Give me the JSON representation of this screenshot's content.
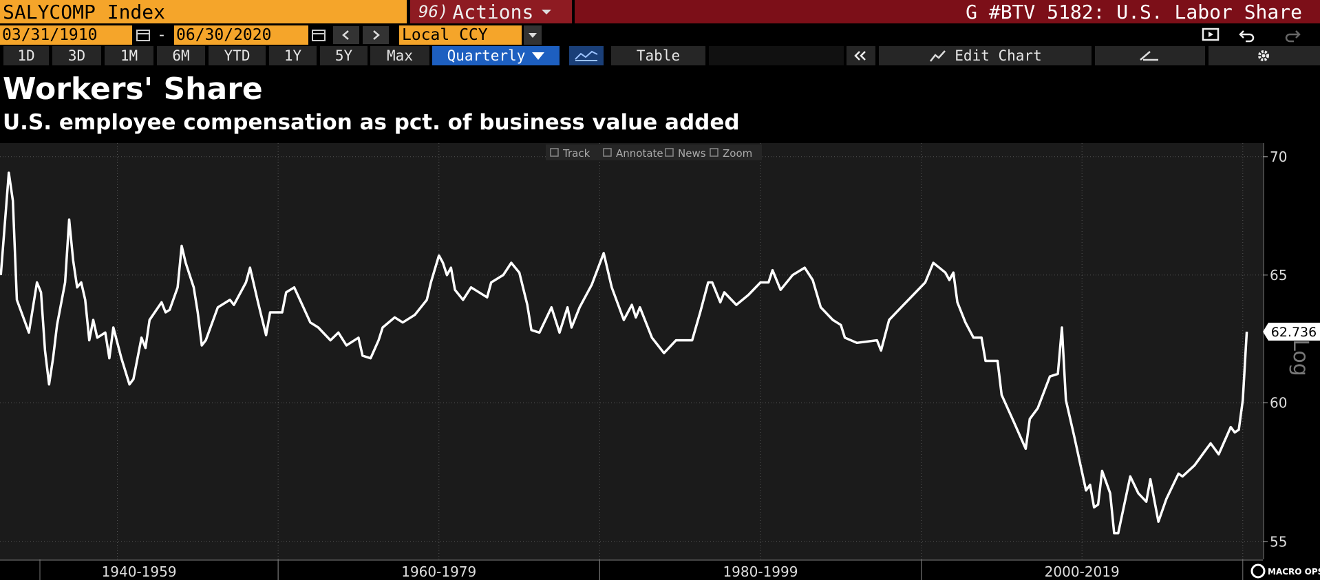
{
  "ui": {
    "ticker": "SALYCOMP Index",
    "actions_number": "96)",
    "actions": "Actions",
    "chart_name": "G #BTV 5182: U.S. Labor Share",
    "start_date": "03/31/1910",
    "date_separator": "-",
    "end_date": "06/30/2020",
    "currency": "Local CCY",
    "ranges": [
      "1D",
      "3D",
      "1M",
      "6M",
      "YTD",
      "1Y",
      "5Y",
      "Max"
    ],
    "frequency": "Quarterly",
    "table": "Table",
    "edit_chart": "Edit Chart",
    "chart_tools": [
      "Track",
      "Annotate",
      "News",
      "Zoom"
    ],
    "scale_label": "Log",
    "watermark": "MACRO OPS"
  },
  "chart_data": {
    "type": "line",
    "title": "Workers' Share",
    "subtitle": "U.S. employee compensation as pct. of business value added",
    "color": "#ffffff",
    "log_scale": true,
    "grid": true,
    "x": [
      1942.75,
      1943.25,
      1943.5,
      1943.75,
      1944.5,
      1945.0,
      1945.25,
      1945.5,
      1945.75,
      1946.0,
      1946.25,
      1946.75,
      1947.0,
      1947.25,
      1947.5,
      1947.75,
      1948.0,
      1948.25,
      1948.5,
      1948.75,
      1949.25,
      1949.5,
      1949.75,
      1950.25,
      1950.75,
      1951.0,
      1951.5,
      1951.75,
      1952.0,
      1952.75,
      1953.0,
      1953.25,
      1953.75,
      1954.0,
      1954.25,
      1954.75,
      1955.0,
      1955.25,
      1955.5,
      1956.25,
      1957.0,
      1957.25,
      1958.0,
      1958.25,
      1958.75,
      1959.25,
      1959.5,
      1960.25,
      1960.5,
      1961.0,
      1961.5,
      1962.0,
      1962.5,
      1963.25,
      1963.75,
      1964.25,
      1965.0,
      1965.25,
      1965.75,
      1966.25,
      1966.5,
      1967.25,
      1967.75,
      1968.5,
      1969.25,
      1969.5,
      1970.0,
      1970.25,
      1970.5,
      1970.75,
      1971.0,
      1971.5,
      1972.0,
      1973.0,
      1973.25,
      1974.0,
      1974.5,
      1975.0,
      1975.5,
      1975.75,
      1976.25,
      1977.0,
      1977.5,
      1978.0,
      1978.25,
      1978.75,
      1979.5,
      1980.25,
      1980.75,
      1981.5,
      1982.0,
      1982.25,
      1982.5,
      1983.25,
      1984.0,
      1984.75,
      1985.75,
      1986.25,
      1986.75,
      1987.0,
      1987.5,
      1987.75,
      1988.5,
      1989.25,
      1990.0,
      1990.5,
      1990.75,
      1991.25,
      1992.0,
      1992.75,
      1993.25,
      1993.75,
      1994.5,
      1995.0,
      1995.25,
      1996.0,
      1997.25,
      1997.5,
      1998.0,
      1998.75,
      1999.5,
      2000.25,
      2000.75,
      2001.5,
      2001.75,
      2002.0,
      2002.25,
      2002.75,
      2003.25,
      2003.75,
      2004.0,
      2004.75,
      2005.0,
      2005.75,
      2006.5,
      2006.75,
      2007.25,
      2008.0,
      2008.5,
      2008.75,
      2009.0,
      2009.5,
      2010.25,
      2010.5,
      2010.75,
      2011.0,
      2011.25,
      2011.75,
      2012.0,
      2012.25,
      2013.0,
      2013.5,
      2014.0,
      2014.25,
      2014.75,
      2015.25,
      2016.0,
      2016.25,
      2017.0,
      2017.75,
      2018.0,
      2018.5,
      2019.25,
      2019.5,
      2019.75,
      2020.0,
      2020.25
    ],
    "values": [
      65.0,
      69.3,
      68.1,
      64.0,
      62.7,
      64.7,
      64.3,
      62.0,
      60.7,
      61.7,
      63.0,
      64.7,
      67.3,
      65.6,
      64.5,
      64.7,
      64.0,
      62.4,
      63.2,
      62.5,
      62.7,
      61.7,
      62.9,
      61.7,
      60.7,
      60.9,
      62.5,
      62.1,
      63.2,
      63.9,
      63.5,
      63.6,
      64.5,
      66.2,
      65.5,
      64.5,
      63.5,
      62.2,
      62.4,
      63.7,
      64.0,
      63.8,
      64.7,
      65.3,
      63.9,
      62.6,
      63.5,
      63.5,
      64.3,
      64.5,
      63.8,
      63.1,
      62.9,
      62.4,
      62.7,
      62.2,
      62.5,
      61.8,
      61.7,
      62.4,
      62.9,
      63.3,
      63.1,
      63.4,
      64.0,
      64.7,
      65.8,
      65.5,
      65.0,
      65.3,
      64.4,
      64.0,
      64.5,
      64.1,
      64.7,
      65.0,
      65.5,
      65.1,
      63.8,
      62.8,
      62.7,
      63.7,
      62.7,
      63.7,
      62.9,
      63.7,
      64.6,
      65.9,
      64.5,
      63.2,
      63.8,
      63.3,
      63.7,
      62.5,
      61.9,
      62.4,
      62.4,
      63.5,
      64.7,
      64.7,
      63.9,
      64.3,
      63.8,
      64.2,
      64.7,
      64.7,
      65.2,
      64.4,
      65.0,
      65.3,
      64.8,
      63.7,
      63.2,
      63.0,
      62.5,
      62.3,
      62.4,
      62.0,
      63.2,
      63.7,
      64.2,
      64.7,
      65.5,
      65.1,
      64.8,
      65.1,
      63.9,
      63.1,
      62.5,
      62.5,
      61.6,
      61.6,
      60.3,
      59.3,
      58.3,
      59.4,
      59.8,
      61.0,
      61.1,
      62.9,
      60.1,
      58.8,
      56.8,
      57.0,
      56.2,
      56.3,
      57.5,
      56.7,
      55.3,
      55.3,
      57.3,
      56.7,
      56.4,
      57.2,
      55.7,
      56.5,
      57.4,
      57.3,
      57.7,
      58.3,
      58.5,
      58.1,
      59.1,
      58.9,
      59.0,
      60.1,
      62.736
    ],
    "xlim": [
      1942.7,
      2021.25
    ],
    "ylim": [
      54.4,
      70.6
    ],
    "yticks": [
      55,
      60,
      65,
      70
    ],
    "xticks": [
      1950,
      1960,
      1970,
      1980,
      1990,
      2000,
      2010,
      2020
    ],
    "x_periods": [
      {
        "label": "1940-1959",
        "start": 1940,
        "end": 1960
      },
      {
        "label": "1960-1979",
        "start": 1960,
        "end": 1980
      },
      {
        "label": "1980-1999",
        "start": 1980,
        "end": 2000
      },
      {
        "label": "2000-2019",
        "start": 2000,
        "end": 2020
      }
    ]
  }
}
